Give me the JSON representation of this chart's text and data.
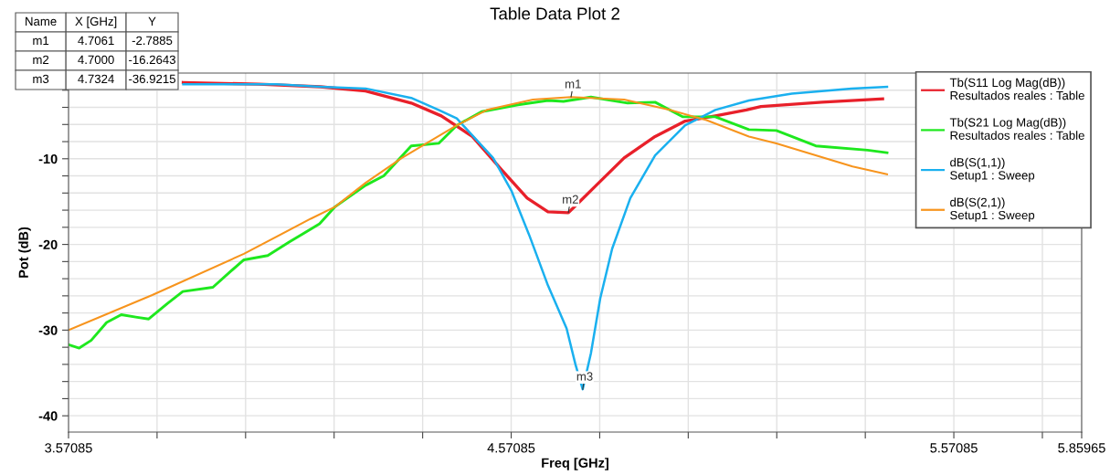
{
  "chart_data": {
    "type": "line",
    "title": "Table Data Plot 2",
    "xlabel": "Freq [GHz]",
    "ylabel": "Pot (dB)",
    "xlim": [
      3.57085,
      5.85965
    ],
    "ylim": [
      -41.9,
      0
    ],
    "xticks": [
      3.57085,
      {
        "value": 3.77085,
        "label": null
      },
      {
        "value": 3.97085,
        "label": null
      },
      {
        "value": 4.17085,
        "label": null
      },
      {
        "value": 4.37085,
        "label": null
      },
      4.57085,
      {
        "value": 4.77085,
        "label": null
      },
      {
        "value": 4.97085,
        "label": null
      },
      {
        "value": 5.17085,
        "label": null
      },
      {
        "value": 5.37085,
        "label": null
      },
      5.57085,
      {
        "value": 5.77085,
        "label": null
      },
      5.85965
    ],
    "yticks": [
      {
        "value": -2,
        "label": null
      },
      {
        "value": -4,
        "label": null
      },
      {
        "value": -6,
        "label": null
      },
      {
        "value": -8,
        "label": null
      },
      -10,
      {
        "value": -12,
        "label": null
      },
      {
        "value": -14,
        "label": null
      },
      {
        "value": -16,
        "label": null
      },
      {
        "value": -18,
        "label": null
      },
      -20,
      {
        "value": -22,
        "label": null
      },
      {
        "value": -24,
        "label": null
      },
      {
        "value": -26,
        "label": null
      },
      {
        "value": -28,
        "label": null
      },
      -30,
      {
        "value": -32,
        "label": null
      },
      {
        "value": -34,
        "label": null
      },
      {
        "value": -36,
        "label": null
      },
      {
        "value": -38,
        "label": null
      },
      -40
    ],
    "grid": true,
    "legend": "top right",
    "marker": "none",
    "line_style": "solid",
    "series": [
      {
        "name": "Tb(S11 Log Mag(dB))\nResultados reales : Table",
        "color": "#e8202a",
        "x": [
          3.83,
          4.0,
          4.14,
          4.242,
          4.345,
          4.413,
          4.483,
          4.551,
          4.607,
          4.654,
          4.7,
          4.722,
          4.763,
          4.826,
          4.896,
          4.964,
          5.032,
          5.102,
          5.135,
          5.273,
          5.41
        ],
        "values": [
          -1.1,
          -1.3,
          -1.6,
          -2.1,
          -3.5,
          -5.0,
          -7.4,
          -11.4,
          -14.6,
          -16.2,
          -16.3,
          -15.2,
          -13.1,
          -9.9,
          -7.4,
          -5.6,
          -5.0,
          -4.3,
          -3.9,
          -3.4,
          -3.0
        ]
      },
      {
        "name": "Tb(S21 Log Mag(dB))\nResultados reales : Table",
        "color": "#1ee81e",
        "x": [
          3.571,
          3.595,
          3.622,
          3.657,
          3.69,
          3.726,
          3.752,
          3.794,
          3.829,
          3.897,
          3.938,
          3.967,
          4.021,
          4.07,
          4.138,
          4.173,
          4.242,
          4.283,
          4.345,
          4.407,
          4.448,
          4.504,
          4.586,
          4.654,
          4.689,
          4.751,
          4.834,
          4.896,
          4.958,
          5.032,
          5.108,
          5.17,
          5.259,
          5.376,
          5.42
        ],
        "values": [
          -31.7,
          -32.1,
          -31.2,
          -29.1,
          -28.2,
          -28.5,
          -28.7,
          -26.9,
          -25.5,
          -25.0,
          -23.1,
          -21.8,
          -21.3,
          -19.7,
          -17.6,
          -15.6,
          -13.1,
          -12.0,
          -8.5,
          -8.2,
          -6.1,
          -4.5,
          -3.7,
          -3.2,
          -3.3,
          -2.8,
          -3.5,
          -3.4,
          -5.1,
          -5.1,
          -6.6,
          -6.7,
          -8.5,
          -9.0,
          -9.3
        ]
      },
      {
        "name": "dB(S(1,1))\nSetup1 : Sweep",
        "color": "#1ab0ef",
        "x": [
          3.83,
          4.04,
          4.14,
          4.242,
          4.345,
          4.407,
          4.448,
          4.53,
          4.572,
          4.613,
          4.654,
          4.696,
          4.716,
          4.7324,
          4.751,
          4.772,
          4.799,
          4.84,
          4.896,
          4.964,
          5.032,
          5.108,
          5.205,
          5.34,
          5.42
        ],
        "values": [
          -1.3,
          -1.3,
          -1.6,
          -1.8,
          -2.9,
          -4.3,
          -5.3,
          -9.9,
          -13.8,
          -19.1,
          -24.8,
          -29.8,
          -34.0,
          -36.9,
          -32.7,
          -26.3,
          -20.5,
          -14.6,
          -9.6,
          -6.1,
          -4.3,
          -3.2,
          -2.4,
          -1.8,
          -1.6
        ]
      },
      {
        "name": "dB(S(2,1))\nSetup1 : Sweep",
        "color": "#f7941d",
        "x": [
          3.571,
          3.76,
          3.967,
          4.118,
          4.173,
          4.242,
          4.324,
          4.448,
          4.516,
          4.62,
          4.7061,
          4.826,
          4.929,
          5.012,
          5.108,
          5.17,
          5.342,
          5.42
        ],
        "values": [
          -30.0,
          -25.9,
          -21.1,
          -17.0,
          -15.6,
          -12.8,
          -9.9,
          -6.1,
          -4.3,
          -3.1,
          -2.8,
          -3.1,
          -4.3,
          -5.5,
          -7.4,
          -8.2,
          -10.9,
          -11.8
        ]
      }
    ],
    "annotations": [
      "Name",
      "X [GHz]",
      "Y",
      "m1",
      "4.7061",
      "-2.7885",
      "m2",
      "4.7000",
      "-16.2643",
      "m3",
      "4.7324",
      "-36.9215",
      {
        "text": "m1",
        "x": 4.7061,
        "y": -2.7885
      },
      {
        "text": "m2",
        "x": 4.7,
        "y": -16.2643
      },
      {
        "text": "m3",
        "x": 4.7324,
        "y": -36.9215
      }
    ]
  }
}
